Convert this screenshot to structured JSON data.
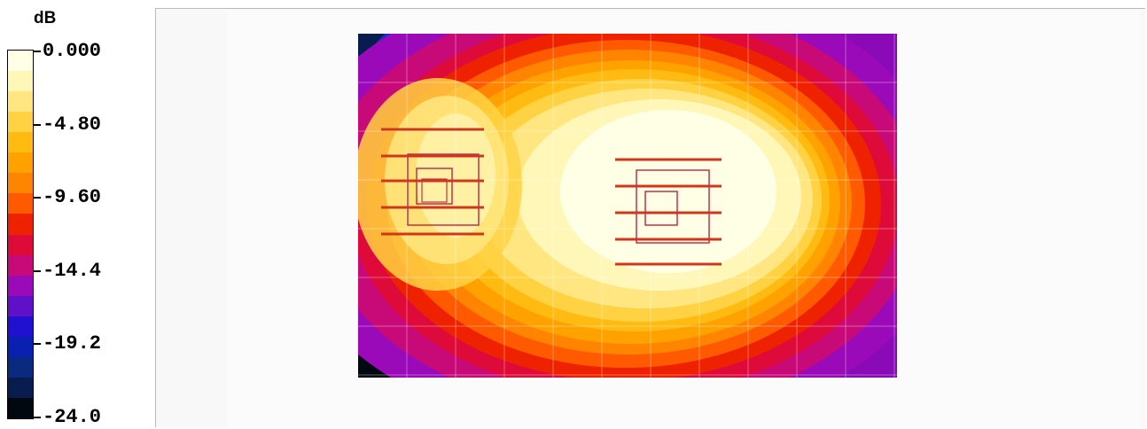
{
  "legend": {
    "unit": "dB",
    "ticks": [
      "0.000",
      "-4.80",
      "-9.60",
      "-14.4",
      "-19.2",
      "-24.0"
    ],
    "colors": [
      "#ffffe6",
      "#fff7b8",
      "#ffe680",
      "#ffd244",
      "#ffbb11",
      "#ffa200",
      "#ff8400",
      "#ff5a00",
      "#ee2200",
      "#dd0a3a",
      "#c80a78",
      "#9a0ab8",
      "#6010c8",
      "#2010d0",
      "#0a20b0",
      "#0a2a80",
      "#081c50",
      "#020810"
    ]
  },
  "chart_data": {
    "type": "heatmap",
    "title": "",
    "colorbar_label": "dB",
    "range": [
      -24.0,
      0.0
    ],
    "colorbar_ticks": [
      0.0,
      -4.8,
      -9.6,
      -14.4,
      -19.2,
      -24.0
    ],
    "grid": true,
    "speakers": [
      {
        "center_fraction": [
          0.13,
          0.45
        ]
      },
      {
        "center_fraction": [
          0.54,
          0.52
        ]
      }
    ]
  }
}
